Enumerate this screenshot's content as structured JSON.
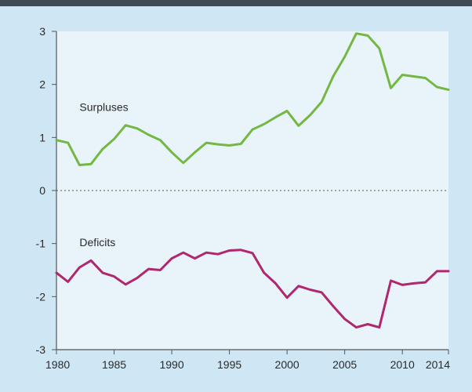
{
  "chart_data": {
    "type": "line",
    "title": "",
    "xlabel": "",
    "ylabel": "",
    "xlim": [
      1980,
      2014
    ],
    "ylim": [
      -3,
      3
    ],
    "grid": false,
    "zero_line": "dotted",
    "x_ticks": [
      1980,
      1985,
      1990,
      1995,
      2000,
      2005,
      2010,
      2014
    ],
    "y_ticks": [
      3,
      2,
      1,
      0,
      -1,
      -2,
      -3
    ],
    "x_tick_labels": [
      "1980",
      "1985",
      "1990",
      "1995",
      "2000",
      "2005",
      "2010",
      "2014"
    ],
    "y_tick_labels": [
      "3",
      "2",
      "1",
      "0",
      "-1",
      "-2",
      "-3"
    ],
    "x": [
      1980,
      1981,
      1982,
      1983,
      1984,
      1985,
      1986,
      1987,
      1988,
      1989,
      1990,
      1991,
      1992,
      1993,
      1994,
      1995,
      1996,
      1997,
      1998,
      1999,
      2000,
      2001,
      2002,
      2003,
      2004,
      2005,
      2006,
      2007,
      2008,
      2009,
      2010,
      2011,
      2012,
      2013,
      2014
    ],
    "series": [
      {
        "name": "Surpluses",
        "color": "#74b843",
        "values": [
          0.95,
          0.9,
          0.48,
          0.5,
          0.78,
          0.97,
          1.23,
          1.17,
          1.05,
          0.95,
          0.72,
          0.52,
          0.72,
          0.9,
          0.87,
          0.85,
          0.88,
          1.15,
          1.25,
          1.38,
          1.5,
          1.22,
          1.42,
          1.67,
          2.15,
          2.52,
          2.96,
          2.92,
          2.68,
          1.93,
          2.18,
          2.15,
          2.12,
          1.95,
          1.9
        ]
      },
      {
        "name": "Deficits",
        "color": "#b0276e",
        "values": [
          -1.55,
          -1.72,
          -1.45,
          -1.32,
          -1.55,
          -1.62,
          -1.77,
          -1.65,
          -1.48,
          -1.5,
          -1.28,
          -1.17,
          -1.28,
          -1.17,
          -1.2,
          -1.13,
          -1.12,
          -1.18,
          -1.55,
          -1.75,
          -2.02,
          -1.8,
          -1.87,
          -1.92,
          -2.18,
          -2.42,
          -2.58,
          -2.52,
          -2.58,
          -1.7,
          -1.78,
          -1.75,
          -1.73,
          -1.52,
          -1.52
        ]
      }
    ]
  }
}
